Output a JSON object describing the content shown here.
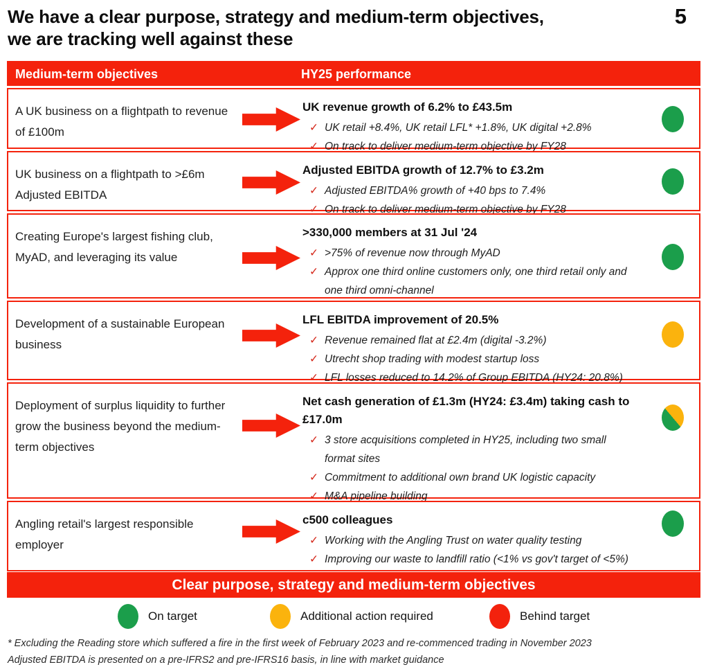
{
  "page": {
    "title_line1": "We have a clear purpose, strategy and medium-term objectives,",
    "title_line2": "we are tracking well against these",
    "page_number": "5"
  },
  "colors": {
    "red": "#f4220c",
    "green": "#1b9e4b",
    "amber": "#fbb30d"
  },
  "table": {
    "header": {
      "col1": "Medium-term objectives",
      "col2": "HY25 performance"
    },
    "rows": [
      {
        "objective": "A UK business on a flightpath to revenue of £100m",
        "headline": "UK revenue growth of 6.2% to £43.5m",
        "check": "✓",
        "bullets": [
          "UK retail +8.4%, UK retail LFL* +1.8%, UK digital +2.8%",
          "On track to deliver medium-term objective by FY28"
        ],
        "status": "green"
      },
      {
        "objective": "UK business on a flightpath to >£6m Adjusted EBITDA",
        "headline": "Adjusted EBITDA growth of 12.7% to £3.2m",
        "check": "✓",
        "bullets": [
          "Adjusted EBITDA% growth of +40 bps to 7.4%",
          "On track to deliver medium-term objective by FY28"
        ],
        "status": "green"
      },
      {
        "objective": "Creating Europe's largest fishing club, MyAD, and leveraging its value",
        "headline": ">330,000 members at 31 Jul '24",
        "check": "✓",
        "bullets": [
          ">75% of revenue now through MyAD",
          "Approx one third online customers only, one third retail only and one third omni-channel"
        ],
        "status": "green"
      },
      {
        "objective": "Development of a sustainable European business",
        "headline": "LFL EBITDA improvement of 20.5%",
        "check": "✓",
        "bullets": [
          "Revenue remained flat at £2.4m (digital -3.2%)",
          "Utrecht shop trading with modest startup loss",
          "LFL losses reduced to 14.2% of Group EBITDA (HY24: 20.8%)"
        ],
        "status": "amber"
      },
      {
        "objective": "Deployment of surplus liquidity to further grow the business beyond the medium-term objectives",
        "headline": "Net cash generation of £1.3m (HY24: £3.4m) taking cash to £17.0m",
        "check": "✓",
        "bullets": [
          "3 store acquisitions completed in HY25, including two small format sites",
          "Commitment to additional own brand UK logistic capacity",
          "M&A pipeline building"
        ],
        "status": "split"
      },
      {
        "objective": "Angling retail's largest responsible employer",
        "headline": "c500 colleagues",
        "check": "✓",
        "bullets": [
          "Working with the Angling Trust on water quality testing",
          "Improving our waste to landfill ratio (<1% vs gov't target of <5%)"
        ],
        "status": "green"
      }
    ]
  },
  "banner": {
    "text": "Clear purpose, strategy and medium-term objectives"
  },
  "legend": {
    "items": [
      {
        "label": "On target",
        "color": "green"
      },
      {
        "label": "Additional action required",
        "color": "amber"
      },
      {
        "label": "Behind target",
        "color": "red"
      }
    ]
  },
  "footnotes": [
    "* Excluding the Reading store which suffered a fire in the first week of February 2023 and re-commenced trading in November 2023",
    "Adjusted EBITDA is presented on a pre-IFRS2 and pre-IFRS16 basis, in line with market guidance"
  ]
}
